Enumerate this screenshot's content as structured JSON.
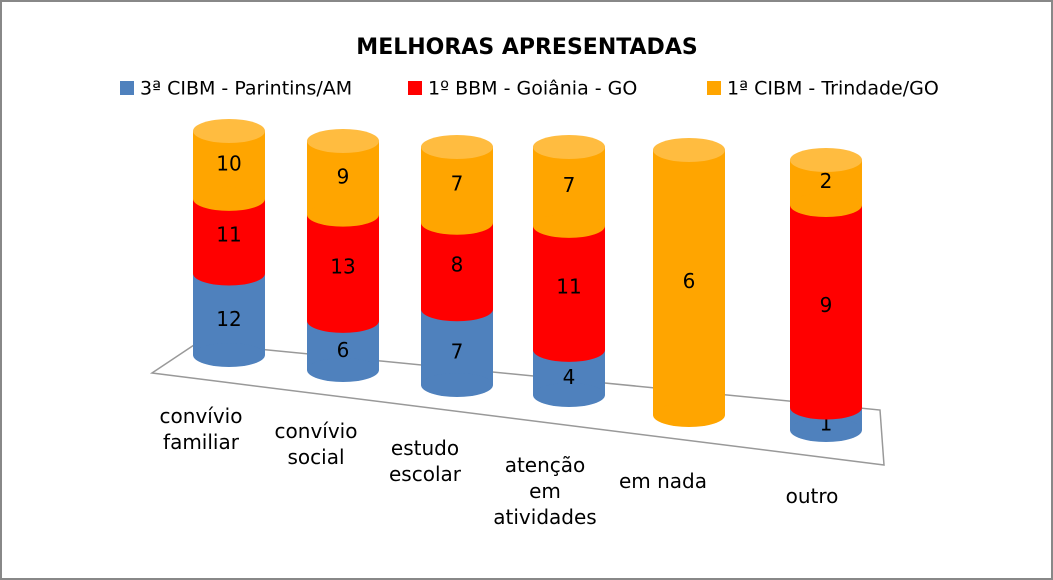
{
  "chart_data": {
    "type": "bar",
    "stacking": "percent",
    "title": "MELHORAS APRESENTADAS",
    "categories": [
      "convívio familiar",
      "convívio social",
      "estudo escolar",
      "atenção em atividades",
      "em nada",
      "outro"
    ],
    "series": [
      {
        "name": "3ª CIBM - Parintins/AM",
        "color": "#4f81bd",
        "values": [
          12,
          6,
          7,
          4,
          0,
          1
        ]
      },
      {
        "name": "1º BBM - Goiânia - GO",
        "color": "#ff0000",
        "values": [
          11,
          13,
          8,
          11,
          0,
          9
        ]
      },
      {
        "name": "1ª CIBM - Trindade/GO",
        "color": "#ffa500",
        "values": [
          10,
          9,
          7,
          7,
          6,
          2
        ]
      }
    ],
    "legend": "top"
  }
}
